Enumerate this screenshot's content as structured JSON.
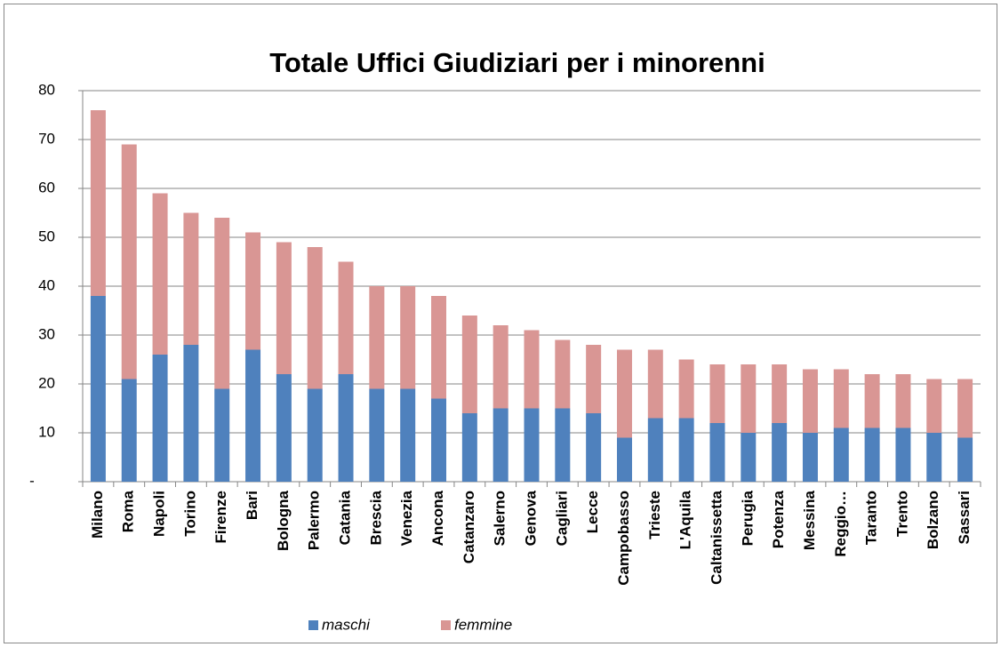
{
  "chart_data": {
    "type": "bar",
    "stacked": true,
    "title": "Totale Uffici Giudiziari per i minorenni",
    "categories": [
      "Milano",
      "Roma",
      "Napoli",
      "Torino",
      "Firenze",
      "Bari",
      "Bologna",
      "Palermo",
      "Catania",
      "Brescia",
      "Venezia",
      "Ancona",
      "Catanzaro",
      "Salerno",
      "Genova",
      "Cagliari",
      "Lecce",
      "Campobasso",
      "Trieste",
      "L'Aquila",
      "Caltanissetta",
      "Perugia",
      "Potenza",
      "Messina",
      "Reggio…",
      "Taranto",
      "Trento",
      "Bolzano",
      "Sassari"
    ],
    "series": [
      {
        "name": "maschi",
        "color": "#4f81bd",
        "values": [
          38,
          21,
          26,
          28,
          19,
          27,
          22,
          19,
          22,
          19,
          19,
          17,
          14,
          15,
          15,
          15,
          14,
          9,
          13,
          13,
          12,
          10,
          12,
          10,
          11,
          11,
          11,
          10,
          9
        ]
      },
      {
        "name": "femmine",
        "color": "#d99694",
        "values": [
          38,
          48,
          33,
          27,
          35,
          24,
          27,
          29,
          23,
          21,
          21,
          21,
          20,
          17,
          16,
          14,
          14,
          18,
          14,
          12,
          12,
          14,
          12,
          13,
          12,
          11,
          11,
          11,
          12
        ]
      }
    ],
    "ylim": [
      0,
      80
    ],
    "yticks": [
      {
        "value": 0,
        "label": "-"
      },
      10,
      20,
      30,
      40,
      50,
      60,
      70,
      80
    ],
    "grid": true,
    "legend": "bottom"
  }
}
